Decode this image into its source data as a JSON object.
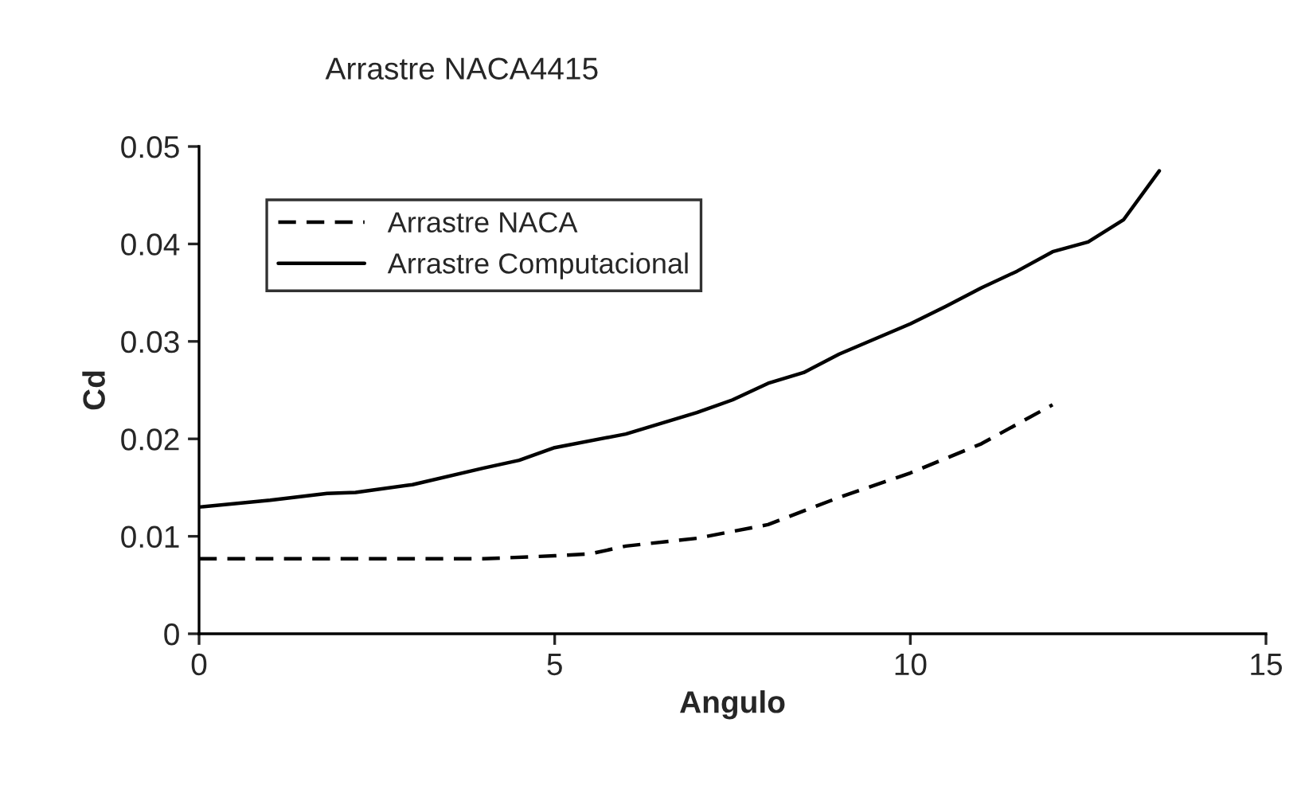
{
  "chart_data": {
    "type": "line",
    "title": "Arrastre NACA4415",
    "xlabel": "Angulo",
    "ylabel": "Cd",
    "xlim": [
      0,
      15
    ],
    "xticks": [
      0,
      5,
      10,
      15
    ],
    "ylim": [
      0,
      0.05
    ],
    "yticks": [
      0,
      0.01,
      0.02,
      0.03,
      0.04,
      0.05
    ],
    "grid": false,
    "legend": "top left",
    "series": [
      {
        "name": "Arrastre NACA",
        "color": "#000000",
        "line_style": "dashed",
        "x": [
          0,
          1,
          2,
          3,
          4,
          5,
          5.5,
          6,
          7,
          8,
          9,
          10,
          11,
          12
        ],
        "values": [
          0.0077,
          0.0077,
          0.0077,
          0.0077,
          0.0077,
          0.008,
          0.0082,
          0.009,
          0.0098,
          0.0112,
          0.014,
          0.0165,
          0.0195,
          0.0235
        ]
      },
      {
        "name": "Arrastre Computacional",
        "color": "#000000",
        "line_style": "solid",
        "x": [
          0,
          1,
          1.8,
          2.2,
          3,
          4,
          4.5,
          5,
          6,
          7,
          7.5,
          8,
          8.5,
          9,
          10,
          10.5,
          11,
          11.5,
          12,
          12.5,
          13,
          13.5
        ],
        "values": [
          0.013,
          0.0137,
          0.0144,
          0.0145,
          0.0153,
          0.017,
          0.0178,
          0.0191,
          0.0205,
          0.0227,
          0.024,
          0.0257,
          0.0268,
          0.0287,
          0.0318,
          0.0336,
          0.0355,
          0.0372,
          0.0392,
          0.0402,
          0.0425,
          0.0475
        ]
      }
    ]
  }
}
